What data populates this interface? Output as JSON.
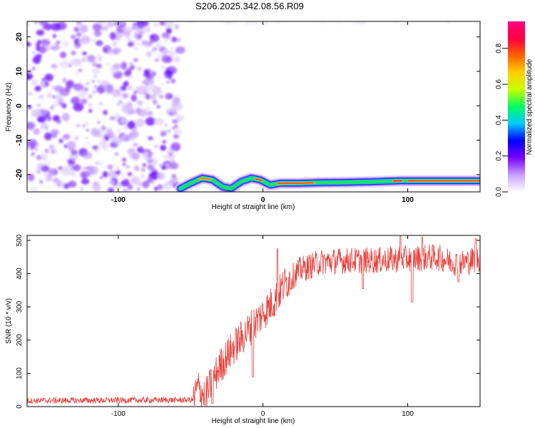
{
  "title": "S206.2025.342.08.56.R09",
  "colors": {
    "snr_line": "#e8413c",
    "background": "#ffffff",
    "axis": "#000000"
  },
  "chart_data": [
    {
      "type": "heatmap",
      "name": "spectrogram",
      "xlabel": "Height of straight line (km)",
      "ylabel": "Frequency (Hz)",
      "xlim": [
        -163,
        150
      ],
      "ylim": [
        -25,
        24.5
      ],
      "xticks": [
        -100,
        0,
        100
      ],
      "xtick_labels": [
        "-100",
        "0",
        "100"
      ],
      "yticks": [
        -20,
        -10,
        0,
        10,
        20
      ],
      "ytick_labels": [
        "-20",
        "-10",
        "0",
        "10",
        "20"
      ],
      "noise_region_x": [
        -163,
        -57
      ],
      "signal_track": [
        {
          "x": -57,
          "f": -24.0
        },
        {
          "x": -50,
          "f": -22.5
        },
        {
          "x": -42,
          "f": -21.0
        },
        {
          "x": -35,
          "f": -21.5
        },
        {
          "x": -28,
          "f": -23.5
        },
        {
          "x": -22,
          "f": -24.0
        },
        {
          "x": -15,
          "f": -22.0
        },
        {
          "x": -8,
          "f": -21.0
        },
        {
          "x": -2,
          "f": -21.5
        },
        {
          "x": 5,
          "f": -23.0
        },
        {
          "x": 12,
          "f": -22.5
        },
        {
          "x": 25,
          "f": -22.5
        },
        {
          "x": 40,
          "f": -22.3
        },
        {
          "x": 60,
          "f": -22.2
        },
        {
          "x": 80,
          "f": -22.0
        },
        {
          "x": 95,
          "f": -21.8
        },
        {
          "x": 120,
          "f": -21.8
        },
        {
          "x": 150,
          "f": -21.8
        }
      ],
      "colorbar": {
        "label": "Normalized spectral amplitude",
        "range": [
          0,
          0.95
        ],
        "ticks": [
          0.0,
          0.2,
          0.4,
          0.6,
          0.8
        ],
        "tick_labels": [
          "0.0",
          "0.2",
          "0.4",
          "0.6",
          "0.8"
        ],
        "colors": [
          "#ffffff",
          "#c8a0ff",
          "#7a00ff",
          "#0000ff",
          "#00c8ff",
          "#00ff60",
          "#c8ff00",
          "#ffd000",
          "#ff6000",
          "#ff0040",
          "#ff0080"
        ]
      }
    },
    {
      "type": "line",
      "name": "snr",
      "xlabel": "Height of straight line (km)",
      "ylabel": "SNR (10 * v/v)",
      "xlim": [
        -163,
        150
      ],
      "ylim": [
        0,
        515
      ],
      "xticks": [
        -100,
        0,
        100
      ],
      "xtick_labels": [
        "-100",
        "0",
        "100"
      ],
      "yticks": [
        0,
        100,
        200,
        300,
        400,
        500
      ],
      "ytick_labels": [
        "0",
        "100",
        "200",
        "300",
        "400",
        "500"
      ],
      "trend": [
        {
          "x": -163,
          "y": 18
        },
        {
          "x": -48,
          "y": 20
        },
        {
          "x": -45,
          "y": 60
        },
        {
          "x": -40,
          "y": 30
        },
        {
          "x": -30,
          "y": 120
        },
        {
          "x": -20,
          "y": 180
        },
        {
          "x": -10,
          "y": 230
        },
        {
          "x": 0,
          "y": 280
        },
        {
          "x": 8,
          "y": 320
        },
        {
          "x": 15,
          "y": 370
        },
        {
          "x": 25,
          "y": 410
        },
        {
          "x": 40,
          "y": 435
        },
        {
          "x": 60,
          "y": 440
        },
        {
          "x": 80,
          "y": 440
        },
        {
          "x": 100,
          "y": 445
        },
        {
          "x": 120,
          "y": 450
        },
        {
          "x": 135,
          "y": 430
        },
        {
          "x": 150,
          "y": 445
        }
      ],
      "dips": [
        {
          "x": -40,
          "y": 5
        },
        {
          "x": -35,
          "y": 10
        },
        {
          "x": -7,
          "y": 90
        },
        {
          "x": 69,
          "y": 355
        },
        {
          "x": 103,
          "y": 315
        },
        {
          "x": 135,
          "y": 375
        }
      ],
      "spikes": [
        {
          "x": 10,
          "y": 475
        },
        {
          "x": 95,
          "y": 515
        },
        {
          "x": 110,
          "y": 510
        },
        {
          "x": 147,
          "y": 505
        }
      ]
    }
  ]
}
